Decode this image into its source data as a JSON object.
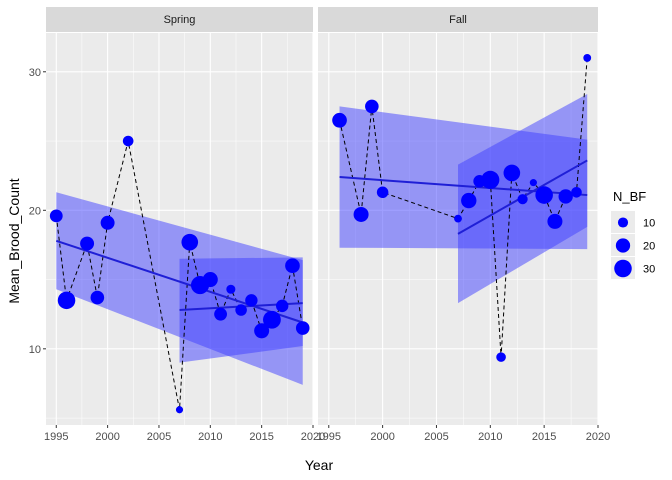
{
  "chart_data": {
    "type": "scatter",
    "xlabel": "Year",
    "ylabel": "Mean_Brood_Count",
    "xlim": [
      1994,
      2020
    ],
    "ylim": [
      4.5,
      32.8
    ],
    "x_ticks": [
      1995,
      2000,
      2005,
      2010,
      2015,
      2020
    ],
    "y_ticks": [
      10,
      20,
      30
    ],
    "grid": true,
    "legend": {
      "title": "N_BF",
      "position": "right",
      "entries": [
        {
          "label": "10",
          "value": 10
        },
        {
          "label": "20",
          "value": 20
        },
        {
          "label": "30",
          "value": 30
        }
      ]
    },
    "colors": {
      "points": "#0000ff",
      "fit_line": "#1f1fd6",
      "ribbon": "#4040ff",
      "panel_bg": "#ebebeb",
      "strip_bg": "#d9d9d9",
      "grid": "#ffffff"
    },
    "panels": [
      {
        "label": "Spring",
        "points": [
          {
            "year": 1995,
            "mean": 19.6,
            "n_bf": 16
          },
          {
            "year": 1996,
            "mean": 13.5,
            "n_bf": 30
          },
          {
            "year": 1998,
            "mean": 17.6,
            "n_bf": 19
          },
          {
            "year": 1999,
            "mean": 13.7,
            "n_bf": 18
          },
          {
            "year": 2000,
            "mean": 19.1,
            "n_bf": 19
          },
          {
            "year": 2002,
            "mean": 25.0,
            "n_bf": 11
          },
          {
            "year": 2007,
            "mean": 5.6,
            "n_bf": 5
          },
          {
            "year": 2008,
            "mean": 17.7,
            "n_bf": 27
          },
          {
            "year": 2009,
            "mean": 14.6,
            "n_bf": 32
          },
          {
            "year": 2010,
            "mean": 15.0,
            "n_bf": 22
          },
          {
            "year": 2011,
            "mean": 12.5,
            "n_bf": 16
          },
          {
            "year": 2012,
            "mean": 14.3,
            "n_bf": 8
          },
          {
            "year": 2013,
            "mean": 12.8,
            "n_bf": 13
          },
          {
            "year": 2014,
            "mean": 13.5,
            "n_bf": 15
          },
          {
            "year": 2015,
            "mean": 11.3,
            "n_bf": 22
          },
          {
            "year": 2016,
            "mean": 12.1,
            "n_bf": 31
          },
          {
            "year": 2017,
            "mean": 13.1,
            "n_bf": 15
          },
          {
            "year": 2018,
            "mean": 16.0,
            "n_bf": 21
          },
          {
            "year": 2019,
            "mean": 11.5,
            "n_bf": 18
          }
        ],
        "fits": [
          {
            "x": [
              1995,
              2019
            ],
            "y": [
              17.8,
              11.9
            ],
            "lower": [
              14.3,
              7.4
            ],
            "upper": [
              21.3,
              16.4
            ]
          },
          {
            "x": [
              2007,
              2019
            ],
            "y": [
              12.8,
              13.3
            ],
            "lower": [
              9.0,
              10.2
            ],
            "upper": [
              16.5,
              16.6
            ]
          }
        ]
      },
      {
        "label": "Fall",
        "points": [
          {
            "year": 1996,
            "mean": 26.5,
            "n_bf": 21
          },
          {
            "year": 1998,
            "mean": 19.7,
            "n_bf": 22
          },
          {
            "year": 1999,
            "mean": 27.5,
            "n_bf": 18
          },
          {
            "year": 2000,
            "mean": 21.3,
            "n_bf": 13
          },
          {
            "year": 2007,
            "mean": 19.4,
            "n_bf": 6
          },
          {
            "year": 2008,
            "mean": 20.7,
            "n_bf": 23
          },
          {
            "year": 2009,
            "mean": 22.1,
            "n_bf": 15
          },
          {
            "year": 2010,
            "mean": 22.2,
            "n_bf": 32
          },
          {
            "year": 2011,
            "mean": 9.4,
            "n_bf": 9
          },
          {
            "year": 2012,
            "mean": 22.7,
            "n_bf": 27
          },
          {
            "year": 2013,
            "mean": 20.8,
            "n_bf": 10
          },
          {
            "year": 2014,
            "mean": 22.0,
            "n_bf": 5
          },
          {
            "year": 2015,
            "mean": 21.1,
            "n_bf": 30
          },
          {
            "year": 2016,
            "mean": 19.2,
            "n_bf": 22
          },
          {
            "year": 2017,
            "mean": 21.0,
            "n_bf": 20
          },
          {
            "year": 2018,
            "mean": 21.3,
            "n_bf": 11
          },
          {
            "year": 2019,
            "mean": 31.0,
            "n_bf": 6
          }
        ],
        "fits": [
          {
            "x": [
              1996,
              2019
            ],
            "y": [
              22.4,
              21.1
            ],
            "lower": [
              17.3,
              17.2
            ],
            "upper": [
              27.5,
              25.1
            ]
          },
          {
            "x": [
              2007,
              2019
            ],
            "y": [
              18.3,
              23.6
            ],
            "lower": [
              13.3,
              18.8
            ],
            "upper": [
              23.3,
              28.4
            ]
          }
        ]
      }
    ]
  }
}
